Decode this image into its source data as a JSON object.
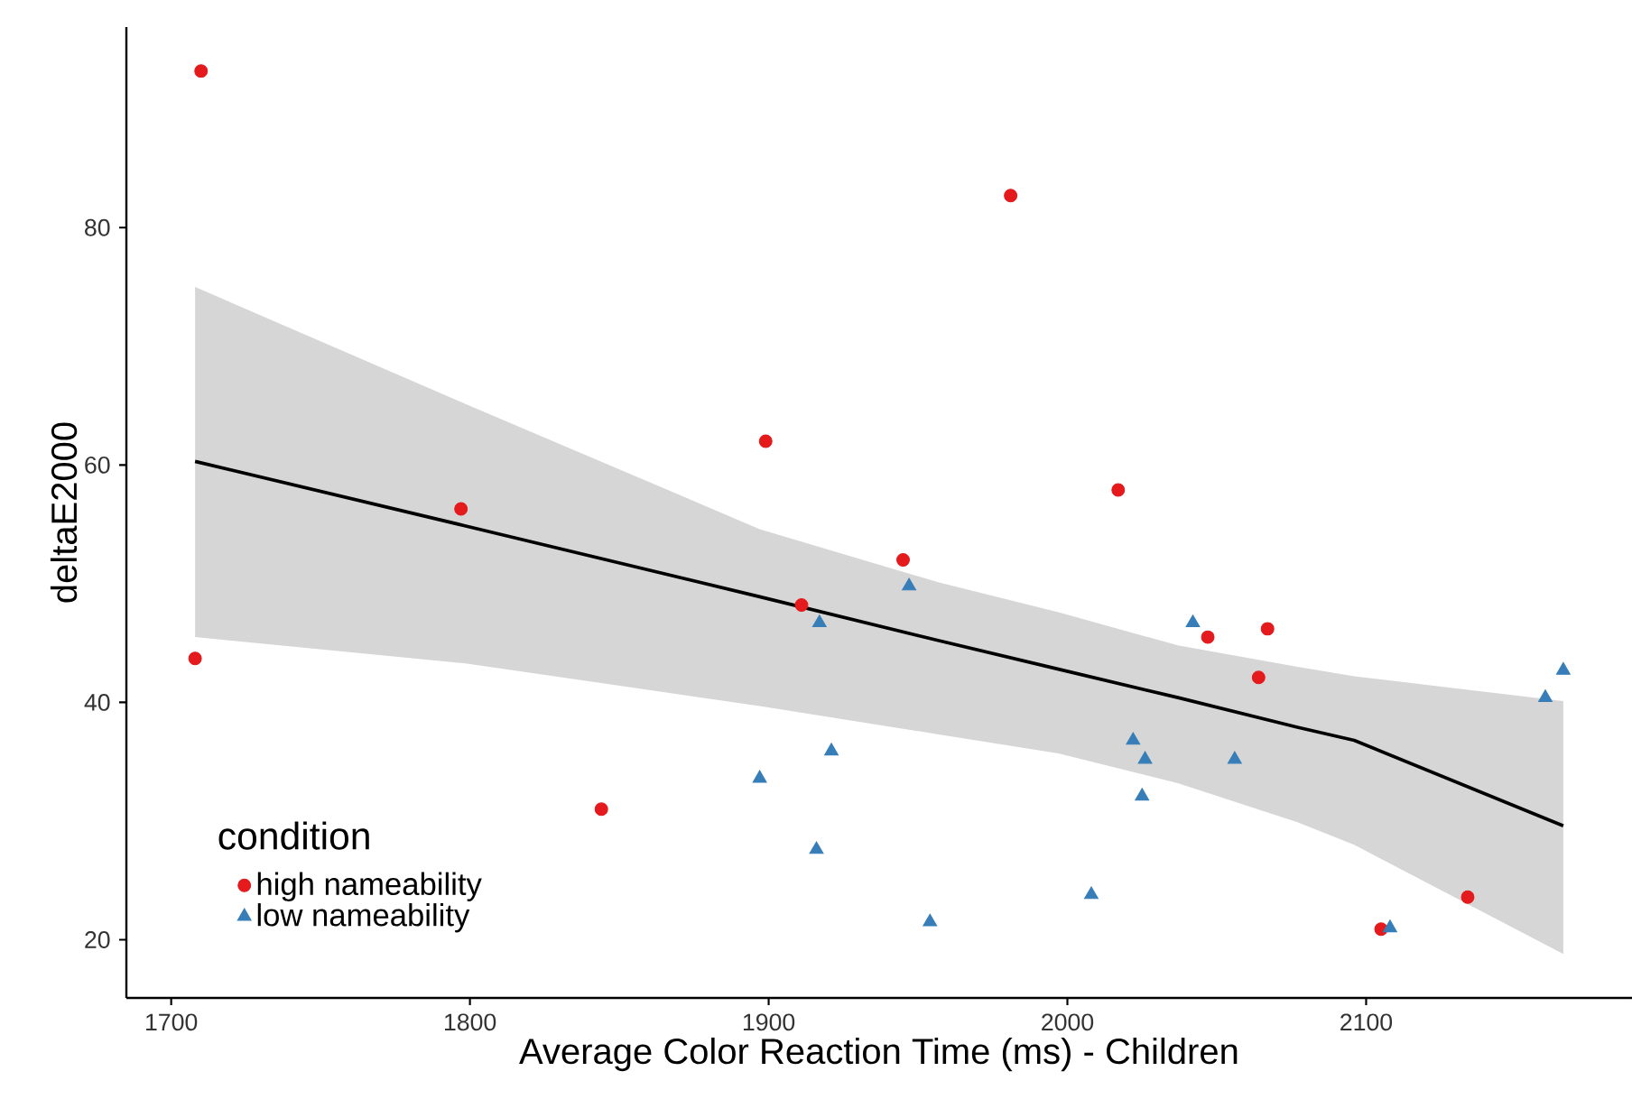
{
  "chart_data": {
    "type": "scatter",
    "xlabel": "Average Color Reaction Time (ms) - Children",
    "ylabel": "deltaE2000",
    "legend_title": "condition",
    "legend": "bottom left",
    "xlim": [
      1685,
      2189
    ],
    "ylim": [
      15.1,
      96.9
    ],
    "xticks": [
      1700,
      1800,
      1900,
      2000,
      2100
    ],
    "yticks": [
      20,
      40,
      60,
      80
    ],
    "series": [
      {
        "name": "high nameability",
        "marker": "circle",
        "color": "#e41a1c",
        "x": [
          1710,
          1797,
          1899,
          1981,
          2017,
          1945,
          1708,
          1844,
          1911,
          2047,
          2067,
          2064,
          2134,
          2105
        ],
        "values": [
          93.2,
          56.3,
          62.0,
          82.7,
          57.9,
          52.0,
          43.7,
          31.0,
          48.2,
          45.5,
          46.2,
          42.1,
          23.6,
          20.9
        ]
      },
      {
        "name": "low nameability",
        "marker": "triangle",
        "color": "#377eb8",
        "x": [
          1917,
          1921,
          1897,
          1916,
          1947,
          1954,
          2008,
          2022,
          2026,
          2025,
          2042,
          2056,
          2108,
          2160,
          2166
        ],
        "values": [
          46.7,
          35.9,
          33.6,
          27.6,
          49.8,
          21.5,
          23.8,
          36.8,
          35.2,
          32.1,
          46.7,
          35.2,
          21.0,
          40.4,
          42.7
        ]
      },
      {
        "type": "line",
        "marker": "none",
        "color": "#000000",
        "x": [
          1708,
          1798,
          1897,
          1957,
          1997,
          2037,
          2077,
          2096,
          2166
        ],
        "values": [
          60.3,
          54.9,
          48.9,
          45.2,
          42.8,
          40.4,
          37.9,
          36.8,
          29.6
        ],
        "lower": [
          45.5,
          43.3,
          39.7,
          37.3,
          35.7,
          33.2,
          29.9,
          28.0,
          18.8
        ],
        "upper": [
          75.0,
          65.2,
          54.6,
          50.1,
          47.6,
          44.8,
          43.0,
          42.2,
          40.1
        ]
      }
    ]
  }
}
